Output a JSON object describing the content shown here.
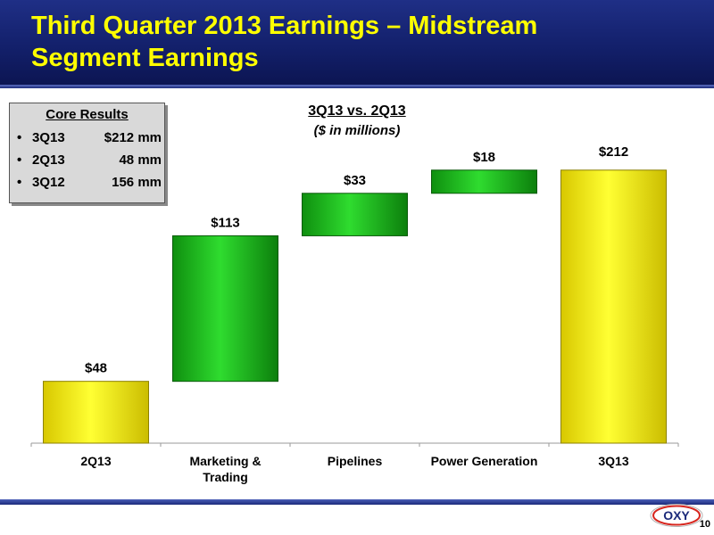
{
  "slide": {
    "title": "Third Quarter 2013 Earnings – Midstream\nSegment Earnings",
    "page_number": "10",
    "logo_text": "OXY"
  },
  "core_results": {
    "title": "Core Results",
    "rows": [
      {
        "label": "3Q13",
        "value": "$212 mm"
      },
      {
        "label": "2Q13",
        "value": "48 mm"
      },
      {
        "label": "3Q12",
        "value": "156 mm"
      }
    ]
  },
  "chart_data": {
    "type": "bar",
    "subtype": "waterfall",
    "title": "3Q13 vs. 2Q13",
    "subtitle": "($ in millions)",
    "categories": [
      "2Q13",
      "Marketing &\nTrading",
      "Pipelines",
      "Power Generation",
      "3Q13"
    ],
    "values": [
      48,
      113,
      33,
      18,
      212
    ],
    "kinds": [
      "total",
      "change",
      "change",
      "change",
      "total"
    ],
    "data_labels": [
      "$48",
      "$113",
      "$33",
      "$18",
      "$212"
    ],
    "bar_colors": {
      "total": "#ffff00",
      "change": "#1ec31e"
    },
    "xlabel": "",
    "ylabel": "",
    "ylim": [
      0,
      225
    ],
    "grid": false,
    "legend": "none"
  }
}
